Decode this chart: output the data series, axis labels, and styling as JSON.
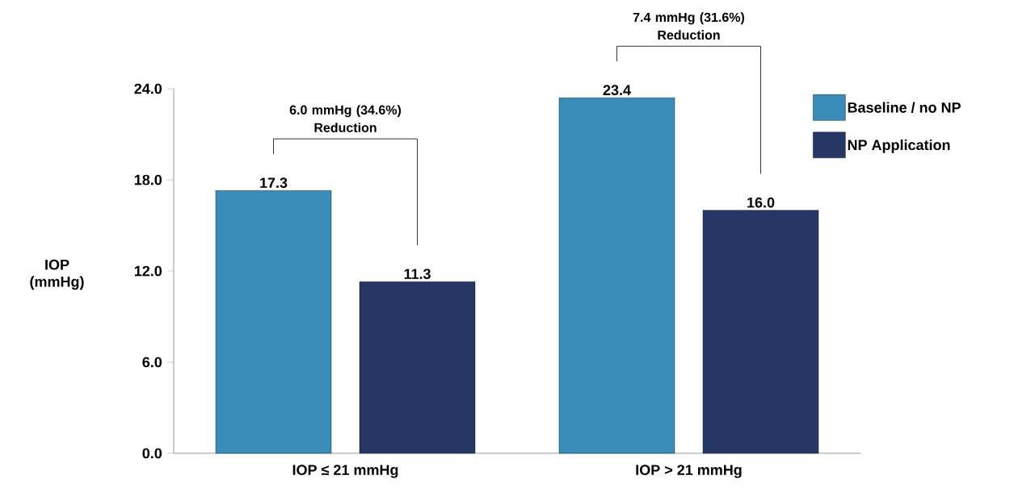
{
  "chart_data": {
    "type": "bar",
    "categories": [
      "IOP ≤ 21 mmHg",
      "IOP > 21 mmHg"
    ],
    "series": [
      {
        "name": "Baseline / no NP",
        "color": "#3a8db8",
        "values": [
          17.3,
          23.4
        ],
        "value_labels": [
          "17.3",
          "23.4"
        ]
      },
      {
        "name": "NP Application",
        "color": "#263766",
        "values": [
          11.3,
          16.0
        ],
        "value_labels": [
          "11.3",
          "16.0"
        ]
      }
    ],
    "ylabel": "IOP (mmHg)",
    "ylim": [
      0,
      24
    ],
    "yticks": [
      {
        "value": 0,
        "label": "0.0"
      },
      {
        "value": 6,
        "label": "6.0"
      },
      {
        "value": 12,
        "label": "12.0"
      },
      {
        "value": 18,
        "label": "18.0"
      },
      {
        "value": 24,
        "label": "24.0"
      }
    ],
    "legend": "right",
    "grid": false,
    "annotations": [
      "6.0 mmHg (34.6%) Reduction",
      "7.4 mmHg (31.6%) Reduction"
    ]
  }
}
